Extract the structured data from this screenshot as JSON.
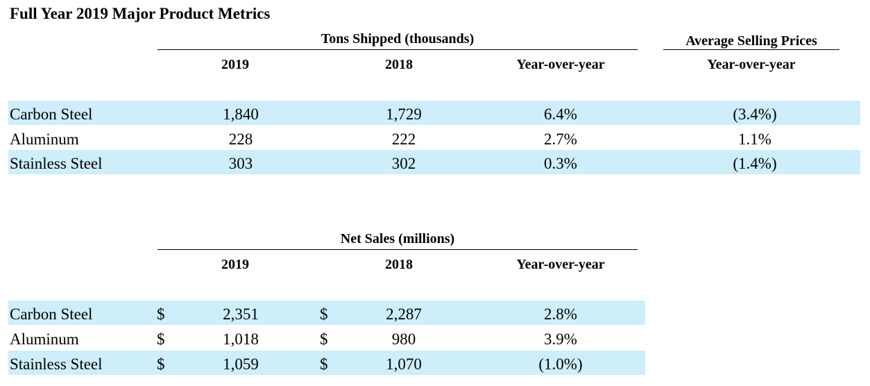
{
  "title": "Full Year 2019 Major Product Metrics",
  "tons_table": {
    "group_header": "Tons Shipped (thousands)",
    "asp_header": "Average Selling Prices",
    "columns": [
      "2019",
      "2018",
      "Year-over-year"
    ],
    "asp_column": "Year-over-year",
    "rows": [
      {
        "label": "Carbon Steel",
        "y2019": "1,840",
        "y2018": "1,729",
        "yoy": "6.4%",
        "asp_yoy": "(3.4%)"
      },
      {
        "label": "Aluminum",
        "y2019": "228",
        "y2018": "222",
        "yoy": "2.7%",
        "asp_yoy": "1.1%"
      },
      {
        "label": "Stainless Steel",
        "y2019": "303",
        "y2018": "302",
        "yoy": "0.3%",
        "asp_yoy": "(1.4%)"
      }
    ]
  },
  "sales_table": {
    "group_header": "Net Sales (millions)",
    "columns": [
      "2019",
      "2018",
      "Year-over-year"
    ],
    "currency_symbol": "$",
    "rows": [
      {
        "label": "Carbon Steel",
        "y2019": "2,351",
        "y2018": "2,287",
        "yoy": "2.8%"
      },
      {
        "label": "Aluminum",
        "y2019": "1,018",
        "y2018": "980",
        "yoy": "3.9%"
      },
      {
        "label": "Stainless Steel",
        "y2019": "1,059",
        "y2018": "1,070",
        "yoy": "(1.0%)"
      }
    ]
  },
  "colors": {
    "band": "#cdeefa",
    "text": "#000000"
  }
}
